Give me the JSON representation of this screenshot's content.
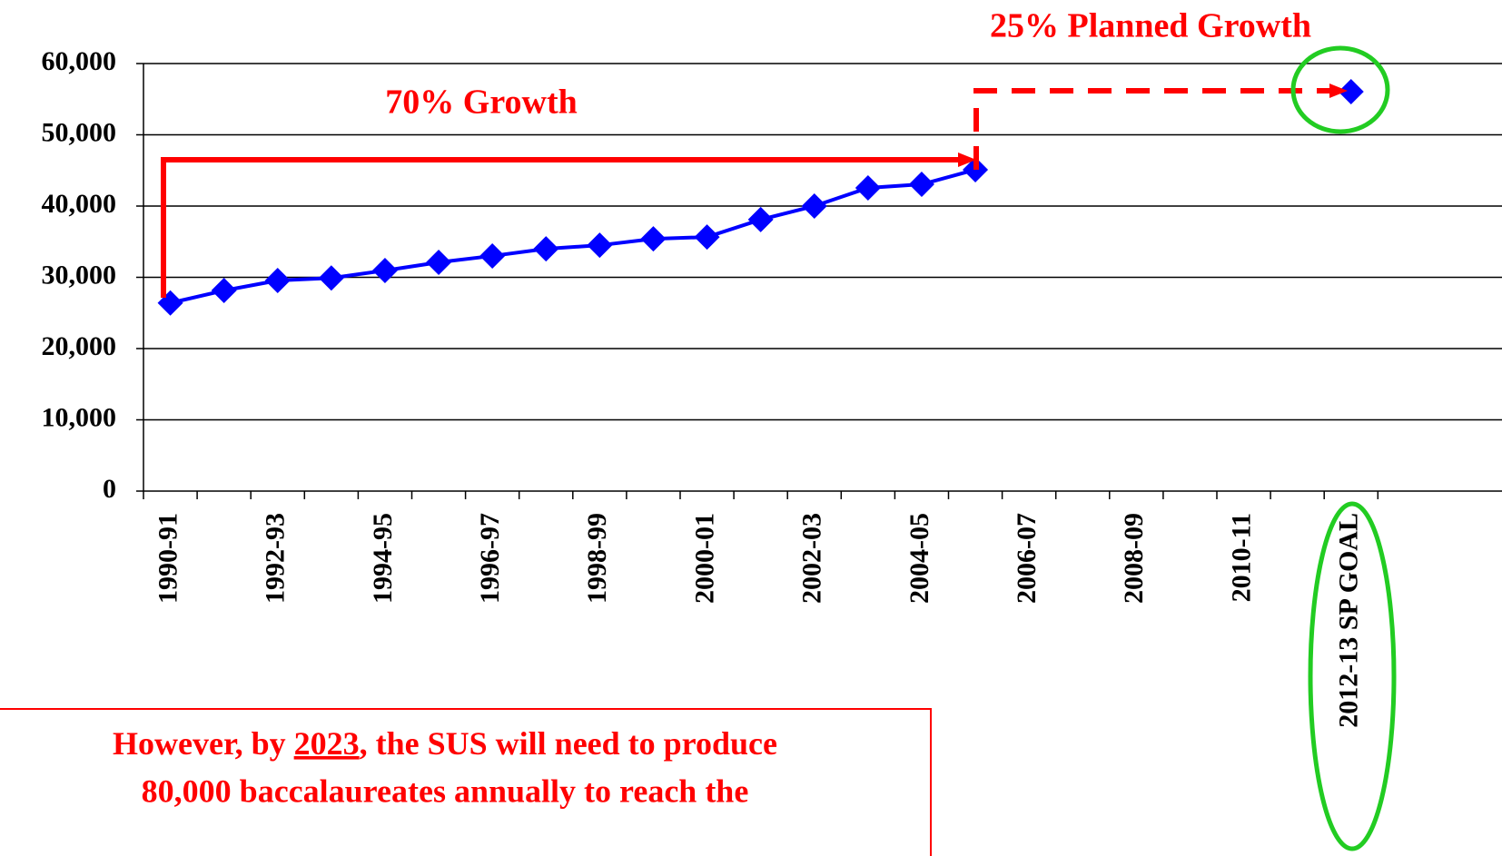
{
  "chart_data": {
    "type": "line",
    "categories": [
      "1990-91",
      null,
      "1992-93",
      null,
      "1994-95",
      null,
      "1996-97",
      null,
      "1998-99",
      null,
      "2000-01",
      null,
      "2002-03",
      null,
      "2004-05",
      null,
      "2006-07",
      null,
      "2008-09",
      null,
      "2010-11",
      null,
      "2012-13 SP GOAL"
    ],
    "series": [
      {
        "color": "#0000ff",
        "values": [
          26400,
          28150,
          29550,
          29900,
          30950,
          32100,
          33000,
          34000,
          34500,
          35400,
          35650,
          38100,
          40000,
          42550,
          43050,
          45100,
          null,
          null,
          null,
          null,
          null,
          null,
          56050
        ]
      }
    ],
    "ylim": [
      0,
      60000
    ],
    "yticks": [
      0,
      {
        "value": 10000,
        "label": "10,000"
      },
      {
        "value": 20000,
        "label": "20,000"
      },
      {
        "value": 30000,
        "label": "30,000"
      },
      {
        "value": 40000,
        "label": "40,000"
      },
      {
        "value": 50000,
        "label": "50,000"
      },
      {
        "value": 60000,
        "label": "60,000"
      }
    ],
    "grid": true,
    "annotations": [
      "70% Growth",
      "25% Planned Growth"
    ],
    "note": [
      "However, by ",
      "2023",
      ", the SUS will need to produce",
      "80,000 baccalaureates annually to reach the"
    ]
  }
}
